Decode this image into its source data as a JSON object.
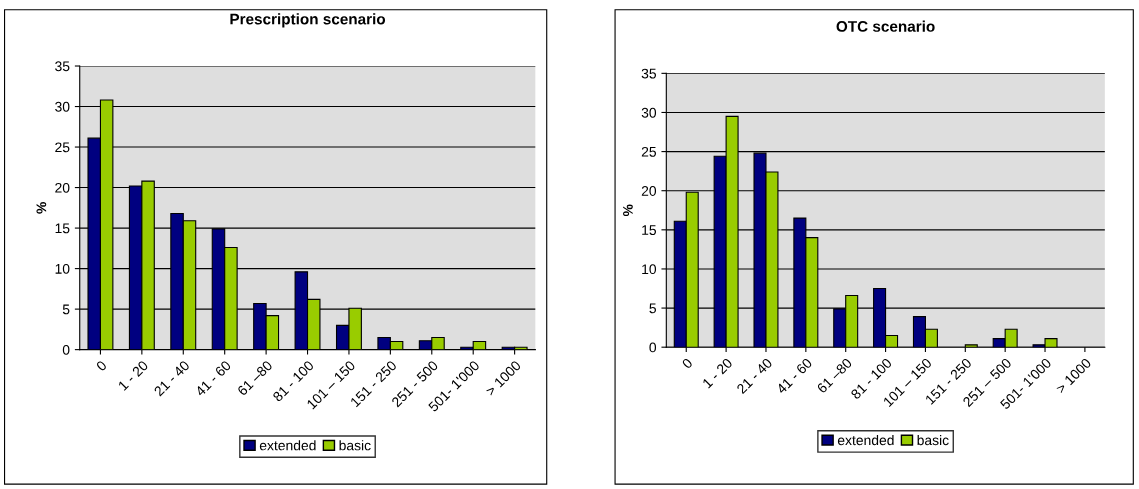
{
  "chart_data": [
    {
      "type": "bar",
      "title": "Prescription scenario",
      "ylabel": "%",
      "categories": [
        "0",
        "1 - 20",
        "21 - 40",
        "41 - 60",
        "61 –80",
        "81 - 100",
        "101 – 150",
        "151 - 250",
        "251 - 500",
        "501- 1'000",
        "> 1000"
      ],
      "series": [
        {
          "name": "extended",
          "color": "#000080",
          "values": [
            26.1,
            20.2,
            16.8,
            14.9,
            5.7,
            9.6,
            3.0,
            1.5,
            1.1,
            0.3,
            0.3
          ]
        },
        {
          "name": "basic",
          "color": "#99cc00",
          "values": [
            30.8,
            20.8,
            15.9,
            12.6,
            4.2,
            6.2,
            5.1,
            1.0,
            1.5,
            1.0,
            0.3
          ]
        }
      ],
      "ylim": [
        0,
        35
      ],
      "yticks": [
        0,
        5,
        10,
        15,
        20,
        25,
        30,
        35
      ],
      "grid": "y",
      "legend": "bottom"
    },
    {
      "type": "bar",
      "title": "OTC scenario",
      "ylabel": "%",
      "categories": [
        "0",
        "1 - 20",
        "21 - 40",
        "41 - 60",
        "61 –80",
        "81 - 100",
        "101 – 150",
        "151 - 250",
        "251 – 500",
        "501- 1'000",
        "> 1000"
      ],
      "series": [
        {
          "name": "extended",
          "color": "#000080",
          "values": [
            16.1,
            24.4,
            24.8,
            16.5,
            4.9,
            7.5,
            3.9,
            null,
            1.1,
            0.3,
            null
          ]
        },
        {
          "name": "basic",
          "color": "#99cc00",
          "values": [
            19.8,
            29.5,
            22.4,
            14.0,
            6.6,
            1.5,
            2.3,
            0.3,
            2.3,
            1.1,
            null
          ]
        }
      ],
      "ylim": [
        0,
        35
      ],
      "yticks": [
        0,
        5,
        10,
        15,
        20,
        25,
        30,
        35
      ],
      "grid": "y",
      "legend": "bottom"
    }
  ]
}
